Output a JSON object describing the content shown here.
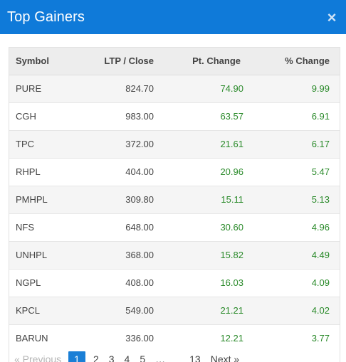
{
  "header": {
    "title": "Top Gainers",
    "close_label": "×"
  },
  "table": {
    "columns": [
      "Symbol",
      "LTP / Close",
      "Pt. Change",
      "% Change"
    ],
    "rows": [
      {
        "symbol": "PURE",
        "ltp": "824.70",
        "pt_change": "74.90",
        "pct_change": "9.99"
      },
      {
        "symbol": "CGH",
        "ltp": "983.00",
        "pt_change": "63.57",
        "pct_change": "6.91"
      },
      {
        "symbol": "TPC",
        "ltp": "372.00",
        "pt_change": "21.61",
        "pct_change": "6.17"
      },
      {
        "symbol": "RHPL",
        "ltp": "404.00",
        "pt_change": "20.96",
        "pct_change": "5.47"
      },
      {
        "symbol": "PMHPL",
        "ltp": "309.80",
        "pt_change": "15.11",
        "pct_change": "5.13"
      },
      {
        "symbol": "NFS",
        "ltp": "648.00",
        "pt_change": "30.60",
        "pct_change": "4.96"
      },
      {
        "symbol": "UNHPL",
        "ltp": "368.00",
        "pt_change": "15.82",
        "pct_change": "4.49"
      },
      {
        "symbol": "NGPL",
        "ltp": "408.00",
        "pt_change": "16.03",
        "pct_change": "4.09"
      },
      {
        "symbol": "KPCL",
        "ltp": "549.00",
        "pt_change": "21.21",
        "pct_change": "4.02"
      },
      {
        "symbol": "BARUN",
        "ltp": "336.00",
        "pt_change": "12.21",
        "pct_change": "3.77"
      }
    ]
  },
  "pagination": {
    "previous": "« Previous",
    "pages": [
      "1",
      "2",
      "3",
      "4",
      "5"
    ],
    "ellipsis": "…",
    "last_page": "13",
    "next": "Next »",
    "active_page": "1"
  },
  "colors": {
    "header_bg": "#0f7ad9",
    "positive": "#2a8a2a",
    "active_page_bg": "#1a7fd6"
  }
}
